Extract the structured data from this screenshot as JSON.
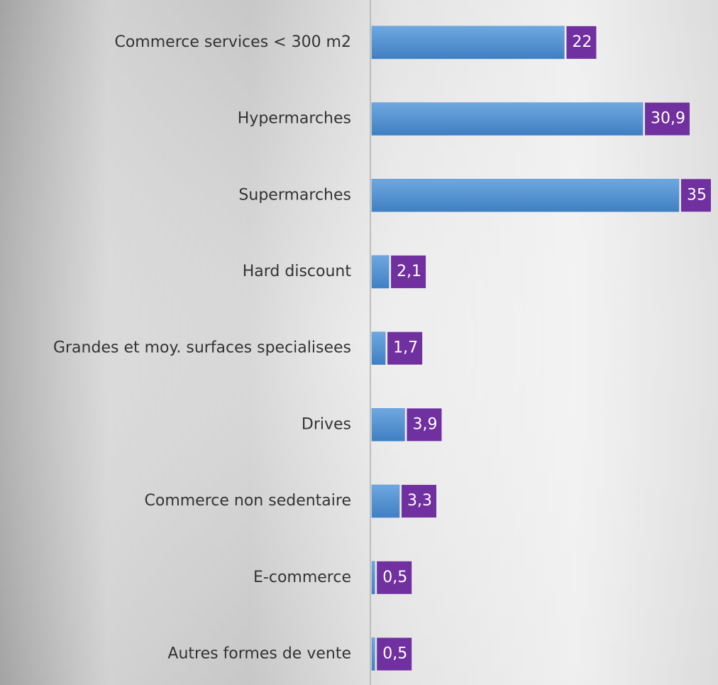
{
  "chart_data": {
    "type": "bar",
    "orientation": "horizontal",
    "categories": [
      "Commerce services < 300 m2",
      "Hypermarches",
      "Supermarches",
      "Hard discount",
      "Grandes et moy. surfaces specialisees",
      "Drives",
      "Commerce non sedentaire",
      "E-commerce",
      "Autres formes de vente"
    ],
    "values": [
      22,
      30.9,
      35,
      2.1,
      1.7,
      3.9,
      3.3,
      0.5,
      0.5
    ],
    "value_labels": [
      "22",
      "30,9",
      "35",
      "2,1",
      "1,7",
      "3,9",
      "3,3",
      "0,5",
      "0,5"
    ],
    "color": "#4f8fd0",
    "label_color": "#7030a0"
  }
}
